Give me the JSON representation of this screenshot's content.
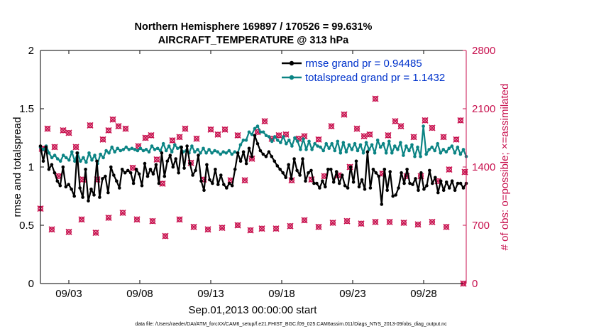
{
  "chart_data": {
    "type": "line",
    "title_line1": "Northern Hemisphere 169897 / 170526 = 99.631%",
    "title_line2": "AIRCRAFT_TEMPERATURE @ 313 hPa",
    "xlabel": "Sep.01,2013 00:00:00 start",
    "ylabel_left": "rmse and totalspread",
    "ylabel_right": "# of obs: o=possible; ×=assimilated",
    "left_ylim": [
      0,
      2
    ],
    "right_ylim": [
      0,
      2800
    ],
    "left_ticks": [
      "0",
      "0.5",
      "1",
      "1.5",
      "2"
    ],
    "right_ticks": [
      "0",
      "700",
      "1400",
      "2100",
      "2800"
    ],
    "x_ticks": [
      "09/03",
      "09/08",
      "09/13",
      "09/18",
      "09/23",
      "09/28"
    ],
    "x_range_days": [
      1,
      31
    ],
    "x_tick_days": [
      3,
      8,
      13,
      18,
      23,
      28
    ],
    "series": [
      {
        "name": "rmse grand pr = 0.94485",
        "color": "#000000",
        "values": [
          1.18,
          1.05,
          1.17,
          0.98,
          1.02,
          0.95,
          0.88,
          0.84,
          1.0,
          0.83,
          0.85,
          0.81,
          0.75,
          1.12,
          0.82,
          0.74,
          0.98,
          0.71,
          0.81,
          0.76,
          1.05,
          0.74,
          0.9,
          0.92,
          0.78,
          1.0,
          0.93,
          0.88,
          0.82,
          0.98,
          0.95,
          0.97,
          0.95,
          0.86,
          0.98,
          0.94,
          0.84,
          1.03,
          0.92,
          0.98,
          0.94,
          1.02,
          0.86,
          1.12,
          0.92,
          1.05,
          1.1,
          1.0,
          1.07,
          0.95,
          1.17,
          0.99,
          1.18,
          1.03,
          0.93,
          0.97,
          1.1,
          0.88,
          0.8,
          1.02,
          0.89,
          0.86,
          0.98,
          0.85,
          0.93,
          0.85,
          0.82,
          0.86,
          0.84,
          0.98,
          1.12,
          1.05,
          1.13,
          1.03,
          1.16,
          1.09,
          1.27,
          1.2,
          1.14,
          1.11,
          1.09,
          1.13,
          1.09,
          1.05,
          1.01,
          0.98,
          0.95,
          0.91,
          1.02,
          0.9,
          1.07,
          0.97,
          0.93,
          1.07,
          0.88,
          0.95,
          0.97,
          0.86,
          0.86,
          0.82,
          0.88,
          0.83,
          0.98,
          0.98,
          0.87,
          0.96,
          0.86,
          0.93,
          0.84,
          0.82,
          1.0,
          0.87,
          1.05,
          0.83,
          0.89,
          0.81,
          1.13,
          0.82,
          0.98,
          0.95,
          0.92,
          0.68,
          0.98,
          0.8,
          0.96,
          0.75,
          0.76,
          0.82,
          0.95,
          0.86,
          0.98,
          0.86,
          0.85,
          0.9,
          0.8,
          0.95,
          0.81,
          0.84,
          0.97,
          0.86,
          0.91,
          0.78,
          0.88,
          0.8,
          0.87,
          0.82,
          0.88,
          0.8,
          0.86,
          0.86,
          0.82,
          0.86
        ]
      },
      {
        "name": "totalspread grand pr = 1.1432",
        "color": "#0b8484",
        "values": [
          1.17,
          1.15,
          1.18,
          1.12,
          1.08,
          1.1,
          1.07,
          1.05,
          1.1,
          1.08,
          1.06,
          1.13,
          1.05,
          1.12,
          1.05,
          1.08,
          1.04,
          1.12,
          1.06,
          1.1,
          1.03,
          1.11,
          1.08,
          1.14,
          1.12,
          1.17,
          1.13,
          1.16,
          1.14,
          1.15,
          1.17,
          1.15,
          1.16,
          1.15,
          1.14,
          1.16,
          1.14,
          1.15,
          1.13,
          1.18,
          1.15,
          1.16,
          1.14,
          1.2,
          1.14,
          1.18,
          1.13,
          1.19,
          1.16,
          1.17,
          1.13,
          1.14,
          1.12,
          1.18,
          1.13,
          1.15,
          1.12,
          1.16,
          1.12,
          1.15,
          1.12,
          1.14,
          1.13,
          1.11,
          1.13,
          1.12,
          1.14,
          1.11,
          1.13,
          1.12,
          1.19,
          1.23,
          1.23,
          1.3,
          1.28,
          1.33,
          1.35,
          1.3,
          1.3,
          1.27,
          1.26,
          1.22,
          1.26,
          1.23,
          1.21,
          1.26,
          1.2,
          1.23,
          1.18,
          1.25,
          1.22,
          1.15,
          1.24,
          1.15,
          1.22,
          1.15,
          1.2,
          1.18,
          1.17,
          1.14,
          1.2,
          1.16,
          1.2,
          1.14,
          1.22,
          1.12,
          1.21,
          1.13,
          1.19,
          1.15,
          1.2,
          1.14,
          1.19,
          1.12,
          1.21,
          1.15,
          1.19,
          1.12,
          1.23,
          1.17,
          1.2,
          1.12,
          1.22,
          1.12,
          1.18,
          1.15,
          1.21,
          1.1,
          1.18,
          1.14,
          1.19,
          1.09,
          1.17,
          1.09,
          1.35,
          1.11,
          1.15,
          1.17,
          1.14,
          1.2,
          1.12,
          1.15,
          1.13,
          1.16,
          1.18,
          1.12,
          1.17,
          1.11,
          1.15,
          1.09
        ]
      }
    ],
    "obs_possible": [
      {
        "d": 1.1,
        "n": 1620
      },
      {
        "d": 1.5,
        "n": 1860
      },
      {
        "d": 2.0,
        "n": 1640
      },
      {
        "d": 2.3,
        "n": 1290
      },
      {
        "d": 2.6,
        "n": 1840
      },
      {
        "d": 3.0,
        "n": 1810
      },
      {
        "d": 3.5,
        "n": 1640
      },
      {
        "d": 4.0,
        "n": 1250
      },
      {
        "d": 4.5,
        "n": 1900
      },
      {
        "d": 5.0,
        "n": 1250
      },
      {
        "d": 5.4,
        "n": 1730
      },
      {
        "d": 5.8,
        "n": 1840
      },
      {
        "d": 6.1,
        "n": 1970
      },
      {
        "d": 6.5,
        "n": 1890
      },
      {
        "d": 7.0,
        "n": 1860
      },
      {
        "d": 7.5,
        "n": 1390
      },
      {
        "d": 7.9,
        "n": 1650
      },
      {
        "d": 8.4,
        "n": 1750
      },
      {
        "d": 8.8,
        "n": 1780
      },
      {
        "d": 9.2,
        "n": 1490
      },
      {
        "d": 9.6,
        "n": 1200
      },
      {
        "d": 10.3,
        "n": 1720
      },
      {
        "d": 10.8,
        "n": 1760
      },
      {
        "d": 11.2,
        "n": 1860
      },
      {
        "d": 11.6,
        "n": 1450
      },
      {
        "d": 12.0,
        "n": 1740
      },
      {
        "d": 12.5,
        "n": 1250
      },
      {
        "d": 13.0,
        "n": 1850
      },
      {
        "d": 13.5,
        "n": 1790
      },
      {
        "d": 14.0,
        "n": 1850
      },
      {
        "d": 14.4,
        "n": 1240
      },
      {
        "d": 14.9,
        "n": 1780
      },
      {
        "d": 15.4,
        "n": 1240
      },
      {
        "d": 15.9,
        "n": 1500
      },
      {
        "d": 16.3,
        "n": 1820
      },
      {
        "d": 16.8,
        "n": 1950
      },
      {
        "d": 17.3,
        "n": 1740
      },
      {
        "d": 17.8,
        "n": 1780
      },
      {
        "d": 18.3,
        "n": 1790
      },
      {
        "d": 18.7,
        "n": 1240
      },
      {
        "d": 19.2,
        "n": 1740
      },
      {
        "d": 19.6,
        "n": 1770
      },
      {
        "d": 20.1,
        "n": 1250
      },
      {
        "d": 20.6,
        "n": 1730
      },
      {
        "d": 21.0,
        "n": 1290
      },
      {
        "d": 21.5,
        "n": 1890
      },
      {
        "d": 22.0,
        "n": 1300
      },
      {
        "d": 22.4,
        "n": 2030
      },
      {
        "d": 22.8,
        "n": 1400
      },
      {
        "d": 23.3,
        "n": 1860
      },
      {
        "d": 23.8,
        "n": 1770
      },
      {
        "d": 24.2,
        "n": 1790
      },
      {
        "d": 24.6,
        "n": 2220
      },
      {
        "d": 25.1,
        "n": 1320
      },
      {
        "d": 25.5,
        "n": 1780
      },
      {
        "d": 26.0,
        "n": 1950
      },
      {
        "d": 26.4,
        "n": 1890
      },
      {
        "d": 26.8,
        "n": 1290
      },
      {
        "d": 27.3,
        "n": 1760
      },
      {
        "d": 27.8,
        "n": 1290
      },
      {
        "d": 28.1,
        "n": 1960
      },
      {
        "d": 28.6,
        "n": 1870
      },
      {
        "d": 29.0,
        "n": 1230
      },
      {
        "d": 29.4,
        "n": 1760
      },
      {
        "d": 29.8,
        "n": 1370
      },
      {
        "d": 30.3,
        "n": 1730
      },
      {
        "d": 30.6,
        "n": 1960
      },
      {
        "d": 30.9,
        "n": 1340
      }
    ],
    "obs_assimilated": [
      {
        "d": 1.0,
        "n": 900
      },
      {
        "d": 1.8,
        "n": 650
      },
      {
        "d": 3.0,
        "n": 620
      },
      {
        "d": 3.9,
        "n": 770
      },
      {
        "d": 4.9,
        "n": 610
      },
      {
        "d": 5.8,
        "n": 790
      },
      {
        "d": 6.8,
        "n": 850
      },
      {
        "d": 7.8,
        "n": 770
      },
      {
        "d": 8.9,
        "n": 750
      },
      {
        "d": 9.8,
        "n": 570
      },
      {
        "d": 10.8,
        "n": 770
      },
      {
        "d": 11.8,
        "n": 680
      },
      {
        "d": 12.8,
        "n": 650
      },
      {
        "d": 13.8,
        "n": 670
      },
      {
        "d": 14.9,
        "n": 700
      },
      {
        "d": 15.8,
        "n": 640
      },
      {
        "d": 16.6,
        "n": 660
      },
      {
        "d": 17.6,
        "n": 660
      },
      {
        "d": 18.6,
        "n": 690
      },
      {
        "d": 19.6,
        "n": 760
      },
      {
        "d": 20.6,
        "n": 680
      },
      {
        "d": 21.6,
        "n": 730
      },
      {
        "d": 22.6,
        "n": 750
      },
      {
        "d": 23.6,
        "n": 720
      },
      {
        "d": 24.6,
        "n": 740
      },
      {
        "d": 25.6,
        "n": 740
      },
      {
        "d": 26.6,
        "n": 730
      },
      {
        "d": 27.6,
        "n": 710
      },
      {
        "d": 28.6,
        "n": 740
      },
      {
        "d": 29.6,
        "n": 680
      },
      {
        "d": 30.8,
        "n": 0
      }
    ],
    "footer": "data file: /Users/raeder/DAI/ATM_forcXX/CAM6_setup/f.e21.FHIST_BGC.f09_025.CAM6assim.011/Diags_NTrS_2013-09/obs_diag_output.nc"
  },
  "colors": {
    "rmse": "#000000",
    "spread": "#0b8484",
    "obs": "#c8124f",
    "legend_text": "#0033cc"
  }
}
